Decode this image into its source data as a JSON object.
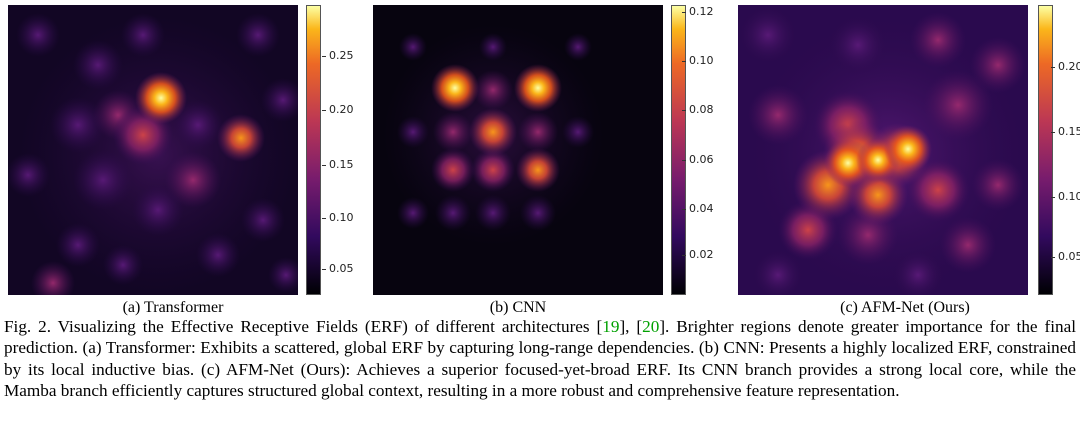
{
  "panels": [
    {
      "id": "transformer",
      "subcaption": "(a) Transformer",
      "ticks": [
        "0.25",
        "0.20",
        "0.15",
        "0.10",
        "0.05"
      ]
    },
    {
      "id": "cnn",
      "subcaption": "(b) CNN",
      "ticks": [
        "0.12",
        "0.10",
        "0.08",
        "0.06",
        "0.04",
        "0.02"
      ]
    },
    {
      "id": "afmnet",
      "subcaption": "(c) AFM-Net (Ours)",
      "ticks": [
        "0.20",
        "0.15",
        "0.10",
        "0.05"
      ]
    }
  ],
  "caption": {
    "label": "Fig. 2.",
    "text_before_refs": "Visualizing the Effective Receptive Fields (ERF) of different architectures",
    "ref1": "19",
    "ref2": "20",
    "text_after_refs": ". Brighter regions denote greater importance for the final prediction. (a) Transformer: Exhibits a scattered, global ERF by capturing long-range dependencies. (b) CNN: Presents a highly localized ERF, constrained by its local inductive bias. (c) AFM-Net (Ours): Achieves a superior focused-yet-broad ERF. Its CNN branch provides a strong local core, while the Mamba branch efficiently captures structured global context, resulting in a more robust and comprehensive feature representation."
  }
}
